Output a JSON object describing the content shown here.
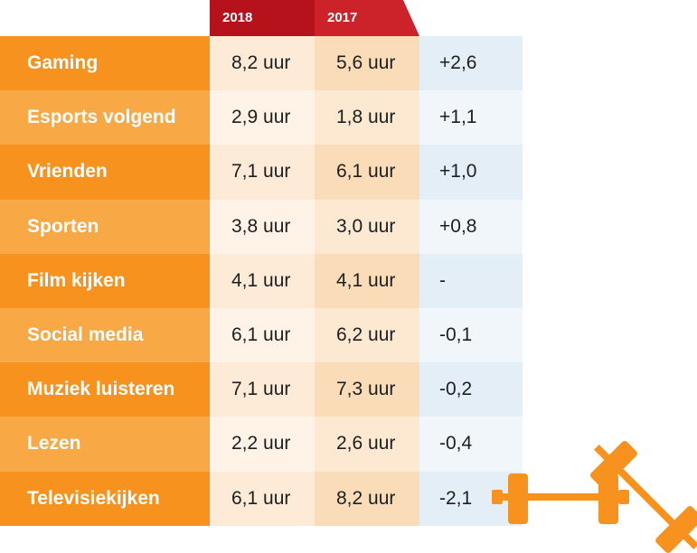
{
  "chart_data": {
    "type": "table",
    "columns": [
      "2018",
      "2017"
    ],
    "rows": [
      {
        "label": "Gaming",
        "y2018": "8,2 uur",
        "y2017": "5,6 uur",
        "change": "+2,6"
      },
      {
        "label": "Esports volgend",
        "y2018": "2,9 uur",
        "y2017": "1,8 uur",
        "change": "+1,1"
      },
      {
        "label": "Vrienden",
        "y2018": "7,1 uur",
        "y2017": "6,1 uur",
        "change": "+1,0"
      },
      {
        "label": "Sporten",
        "y2018": "3,8 uur",
        "y2017": "3,0 uur",
        "change": "+0,8"
      },
      {
        "label": "Film kijken",
        "y2018": "4,1 uur",
        "y2017": "4,1 uur",
        "change": "-"
      },
      {
        "label": "Social media",
        "y2018": "6,1 uur",
        "y2017": "6,2 uur",
        "change": "-0,1"
      },
      {
        "label": "Muziek luisteren",
        "y2018": "7,1 uur",
        "y2017": "7,3 uur",
        "change": "-0,2"
      },
      {
        "label": "Lezen",
        "y2018": "2,2 uur",
        "y2017": "2,6 uur",
        "change": "-0,4"
      },
      {
        "label": "Televisiekijken",
        "y2018": "6,1 uur",
        "y2017": "8,2 uur",
        "change": "-2,1"
      }
    ]
  },
  "colors": {
    "category_dark": "#f7921e",
    "category_light": "#f9a846",
    "header_2018": "#b5121b",
    "header_2017": "#cc2229",
    "dumbbell": "#f7921e"
  },
  "decoration": {
    "icon": "dumbbell-icon"
  }
}
